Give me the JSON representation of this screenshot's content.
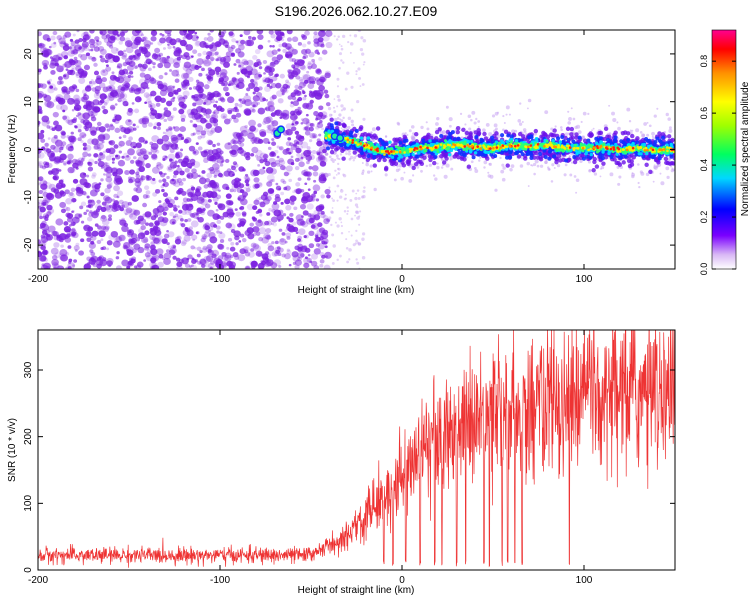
{
  "title": "S196.2026.062.10.27.E09",
  "colors": {
    "signal_line": "#ee3333",
    "scatter_points": "#7b1fe0"
  },
  "chart_data": [
    {
      "type": "heatmap",
      "xlabel": "Height of straight line (km)",
      "ylabel": "Frequency (Hz)",
      "xlim": [
        -200,
        150
      ],
      "ylim": [
        -25,
        25
      ],
      "x_ticks": [
        "-200",
        "-100",
        "0",
        "100"
      ],
      "x_tick_values": [
        -200,
        -100,
        0,
        100
      ],
      "y_ticks": [
        "-20",
        "-10",
        "0",
        "10",
        "20"
      ],
      "y_tick_values": [
        -20,
        -10,
        0,
        10,
        20
      ],
      "colorbar": {
        "label": "Normalized spectral amplitude",
        "range": [
          0,
          0.92
        ],
        "ticks": [
          "0.0",
          "0.2",
          "0.4",
          "0.6",
          "0.8"
        ],
        "tick_values": [
          0.0,
          0.2,
          0.4,
          0.6,
          0.8
        ],
        "colormap": "rainbow (purple to red)"
      },
      "noise_region_km": [
        -200,
        -40
      ],
      "signal_track": {
        "x": [
          -70,
          -65,
          -40,
          -30,
          -20,
          -10,
          0,
          10,
          20,
          30,
          40,
          50,
          60,
          70,
          80,
          90,
          100,
          110,
          120,
          130,
          140,
          150
        ],
        "y": [
          3.2,
          4.0,
          2.8,
          2.0,
          0.8,
          -0.5,
          -0.3,
          0.2,
          0.6,
          0.9,
          0.5,
          0.3,
          0.8,
          0.6,
          0.9,
          0.4,
          0.2,
          0.5,
          0.0,
          0.3,
          -0.2,
          0.0
        ],
        "amplitude": [
          0.6,
          0.5,
          0.5,
          0.5,
          0.6,
          0.6,
          0.6,
          0.7,
          0.7,
          0.7,
          0.7,
          0.7,
          0.75,
          0.75,
          0.8,
          0.8,
          0.8,
          0.85,
          0.85,
          0.9,
          0.9,
          0.9
        ]
      },
      "grid": false
    },
    {
      "type": "line",
      "xlabel": "Height of straight line (km)",
      "ylabel": "SNR (10 * v/v)",
      "xlim": [
        -200,
        150
      ],
      "ylim": [
        0,
        360
      ],
      "x_ticks": [
        "-200",
        "-100",
        "0",
        "100"
      ],
      "x_tick_values": [
        -200,
        -100,
        0,
        100
      ],
      "y_ticks": [
        "0",
        "100",
        "200",
        "300"
      ],
      "y_tick_values": [
        0,
        100,
        200,
        300
      ],
      "series_envelope": {
        "x": [
          -200,
          -50,
          -30,
          -20,
          -10,
          0,
          10,
          20,
          30,
          40,
          50,
          60,
          70,
          80,
          90,
          100,
          120,
          150
        ],
        "y_mean": [
          22,
          22,
          50,
          85,
          115,
          145,
          170,
          195,
          210,
          225,
          232,
          240,
          245,
          250,
          255,
          258,
          262,
          265
        ]
      },
      "dropouts_km": [
        -10,
        -5,
        2,
        10,
        18,
        22,
        30,
        35,
        45,
        48,
        55,
        58,
        62,
        66,
        92
      ],
      "grid": false
    }
  ]
}
